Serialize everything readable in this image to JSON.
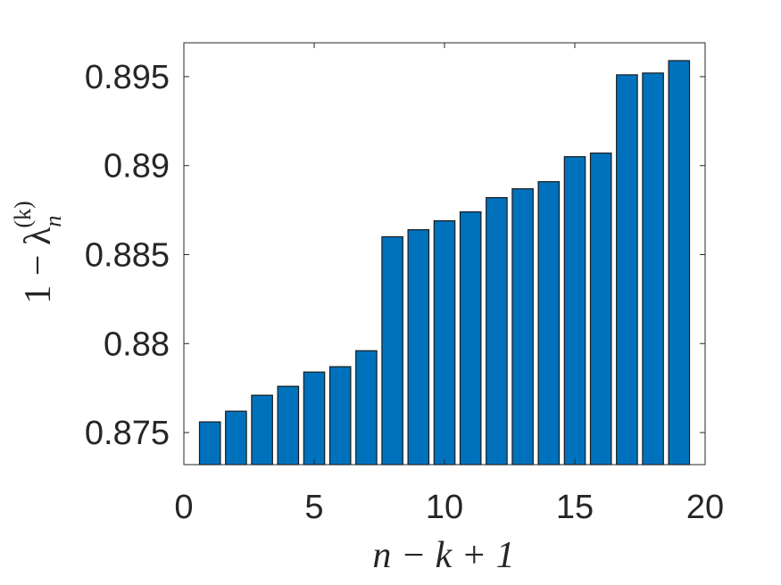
{
  "chart_data": {
    "type": "bar",
    "x": [
      1,
      2,
      3,
      4,
      5,
      6,
      7,
      8,
      9,
      10,
      11,
      12,
      13,
      14,
      15,
      16,
      17,
      18,
      19
    ],
    "values": [
      0.8756,
      0.8762,
      0.8771,
      0.8776,
      0.8784,
      0.8787,
      0.8796,
      0.886,
      0.8864,
      0.8869,
      0.8874,
      0.8882,
      0.8887,
      0.8891,
      0.8905,
      0.8907,
      0.8951,
      0.8952,
      0.8959
    ],
    "xlim": [
      0,
      20
    ],
    "ylim": [
      0.8732,
      0.8969
    ],
    "xticks": [
      0,
      5,
      10,
      15,
      20
    ],
    "yticks": [
      0.875,
      0.88,
      0.885,
      0.89,
      0.895
    ],
    "xtick_labels": [
      "0",
      "5",
      "10",
      "15",
      "20"
    ],
    "ytick_labels": [
      "0.875",
      "0.88",
      "0.885",
      "0.89",
      "0.895"
    ],
    "xlabel": "n − k + 1",
    "ylabel": {
      "base": "1 − λ",
      "subscript": "n",
      "superscript": "(k)"
    },
    "grid": false,
    "bar_color": "#0072BD"
  }
}
